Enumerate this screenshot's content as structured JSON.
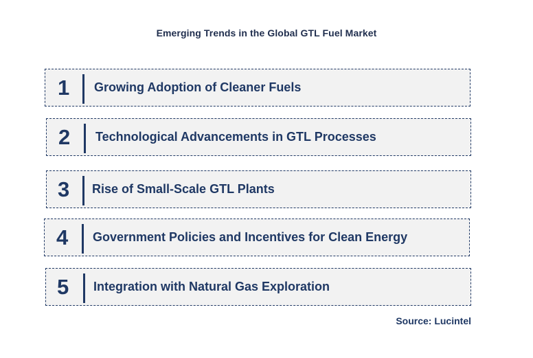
{
  "title": "Emerging Trends in the Global GTL Fuel Market",
  "trends": [
    {
      "number": "1",
      "label": "Growing Adoption of Cleaner Fuels"
    },
    {
      "number": "2",
      "label": "Technological Advancements in GTL Processes"
    },
    {
      "number": "3",
      "label": "Rise of Small-Scale GTL Plants"
    },
    {
      "number": "4",
      "label": "Government Policies and Incentives for Clean Energy"
    },
    {
      "number": "5",
      "label": "Integration with Natural Gas Exploration"
    }
  ],
  "source": "Source: Lucintel",
  "colors": {
    "accent": "#1f3864",
    "box_fill": "#f2f2f2",
    "title": "#1f2d4d"
  }
}
